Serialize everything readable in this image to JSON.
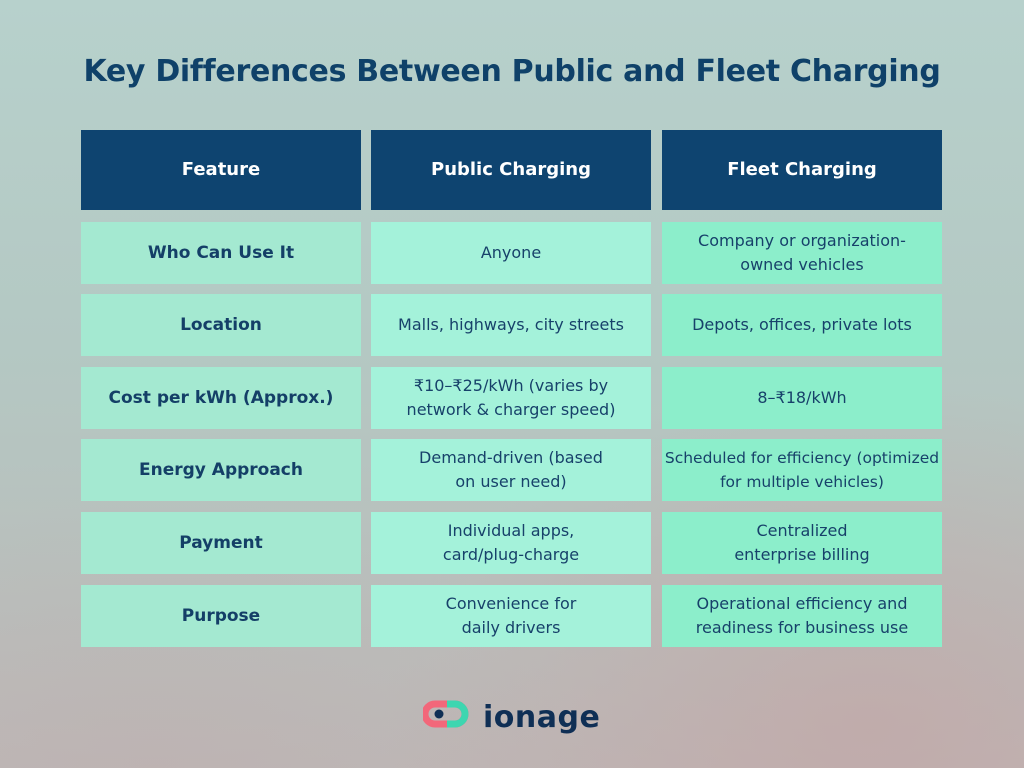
{
  "title": "Key Differences Between Public and Fleet Charging",
  "headers": [
    "Feature",
    "Public Charging",
    "Fleet Charging"
  ],
  "rows": [
    {
      "feature": "Who Can Use It",
      "public": "Anyone",
      "fleet": "Company or organization-owned vehicles"
    },
    {
      "feature": "Location",
      "public": "Malls, highways, city streets",
      "fleet": "Depots, offices, private lots"
    },
    {
      "feature": "Cost per kWh (Approx.)",
      "public": "₹10–₹25/kWh (varies by network & charger speed)",
      "fleet": "8–₹18/kWh"
    },
    {
      "feature": "Energy Approach",
      "public": "Demand-driven (based on user need)",
      "fleet": "Scheduled for efficiency (optimized for multiple vehicles)"
    },
    {
      "feature": "Payment",
      "public": "Individual apps, card/plug-charge",
      "fleet": "Centralized enterprise billing"
    },
    {
      "feature": "Purpose",
      "public": "Convenience for daily drivers",
      "fleet": "Operational efficiency and readiness for business use"
    }
  ],
  "logo": {
    "text": "ionage",
    "icon": "ionage-logo-icon",
    "colors": [
      "#f2677a",
      "#3dd6b0",
      "#0f2f55"
    ]
  },
  "colors": {
    "header_bg": "#0e4470",
    "header_text": "#ffffff",
    "feature_bg": "#a4e9d1",
    "public_bg": "#a4f2da",
    "fleet_bg": "#8ceecb",
    "text": "#17416a"
  }
}
